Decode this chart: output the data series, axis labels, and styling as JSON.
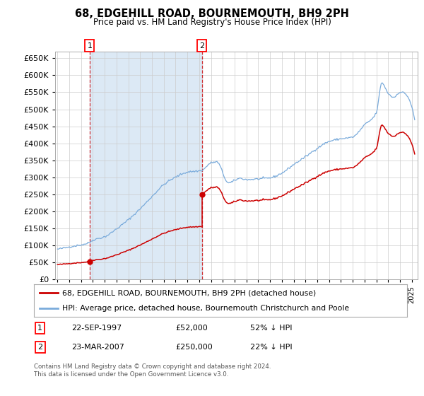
{
  "title": "68, EDGEHILL ROAD, BOURNEMOUTH, BH9 2PH",
  "subtitle": "Price paid vs. HM Land Registry's House Price Index (HPI)",
  "legend_line1": "68, EDGEHILL ROAD, BOURNEMOUTH, BH9 2PH (detached house)",
  "legend_line2": "HPI: Average price, detached house, Bournemouth Christchurch and Poole",
  "footer1": "Contains HM Land Registry data © Crown copyright and database right 2024.",
  "footer2": "This data is licensed under the Open Government Licence v3.0.",
  "sale1_date": "22-SEP-1997",
  "sale1_price": 52000,
  "sale1_label": "52% ↓ HPI",
  "sale2_date": "23-MAR-2007",
  "sale2_price": 250000,
  "sale2_label": "22% ↓ HPI",
  "hpi_color": "#7aabdb",
  "price_color": "#cc0000",
  "shade_color": "#dce9f5",
  "background_fig": "#ffffff",
  "grid_color": "#cccccc",
  "ylim": [
    0,
    670000
  ],
  "yticks": [
    0,
    50000,
    100000,
    150000,
    200000,
    250000,
    300000,
    350000,
    400000,
    450000,
    500000,
    550000,
    600000,
    650000
  ],
  "xlim_start": 1994.8,
  "xlim_end": 2025.5
}
